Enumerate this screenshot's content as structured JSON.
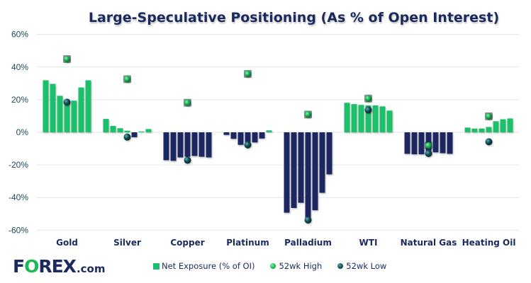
{
  "chart_data": {
    "type": "bar",
    "title": "Large-Speculative Positioning (As % of Open Interest)",
    "xlabel": "",
    "ylabel": "",
    "ylim": [
      -60,
      60
    ],
    "yticks": [
      60,
      40,
      20,
      0,
      -20,
      -40,
      -60
    ],
    "ytick_labels": [
      "60%",
      "40%",
      "20%",
      "0%",
      "-20%",
      "-40%",
      "-60%"
    ],
    "grid": true,
    "legend_position": "bottom",
    "categories": [
      "Gold",
      "Silver",
      "Copper",
      "Platinum",
      "Palladium",
      "WTI",
      "Natural Gas",
      "Heating Oil"
    ],
    "series": [
      {
        "name": "Net Exposure (% of OI)",
        "type": "bar",
        "color": "#1cc06a",
        "negative_color": "#1b2560",
        "values": [
          [
            31.9,
            29.7,
            22.4,
            19.4,
            19.4,
            27.5,
            31.9
          ],
          [
            8.2,
            3.9,
            2.5,
            1.0,
            -3.0,
            0.5,
            2.0
          ],
          [
            -17.1,
            -17.5,
            -15.4,
            -15.0,
            -14.5,
            -15.0,
            -15.4
          ],
          [
            -1.6,
            -4.0,
            -7.7,
            -7.5,
            -6.2,
            -3.8,
            1.2
          ],
          [
            -49.3,
            -46.4,
            -43.2,
            -53.0,
            -47.8,
            -37.1,
            -25.8
          ],
          [
            18.1,
            17.3,
            16.8,
            16.5,
            16.5,
            15.9,
            13.3
          ],
          [
            -13.2,
            -13.5,
            -13.5,
            -13.5,
            -12.3,
            -12.8,
            -13.2
          ],
          [
            2.9,
            2.3,
            2.3,
            3.3,
            6.8,
            8.0,
            8.5
          ]
        ]
      },
      {
        "name": "52wk High",
        "type": "scatter",
        "color": "#1db954",
        "values": [
          44.9,
          32.6,
          18.1,
          35.8,
          10.9,
          20.7,
          -8.1,
          9.8
        ]
      },
      {
        "name": "52wk Low",
        "type": "scatter",
        "color": "#14505a",
        "values": [
          18.5,
          -2.9,
          -17.1,
          -7.7,
          -53.8,
          13.7,
          -13.0,
          -5.8
        ]
      }
    ]
  },
  "logo": {
    "part1": "F",
    "part2": "O",
    "part3": "REX",
    "suffix": ".com"
  },
  "legend": [
    {
      "label": "Net Exposure (% of OI)",
      "color": "#1cc06a",
      "shape": "square"
    },
    {
      "label": "52wk High",
      "color": "#1db954",
      "shape": "circle"
    },
    {
      "label": "52wk Low",
      "color": "#14505a",
      "shape": "circle"
    }
  ]
}
